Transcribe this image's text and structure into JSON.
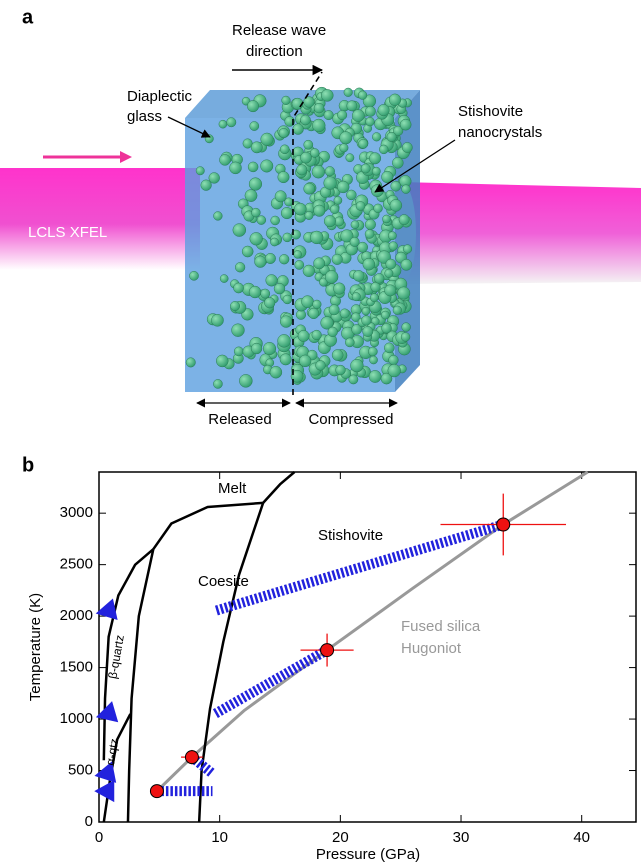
{
  "panel_a": {
    "label": "a",
    "release_wave": [
      "Release wave",
      "direction"
    ],
    "glass": [
      "Diaplectic",
      "glass"
    ],
    "stishovite": [
      "Stishovite",
      "nanocrystals"
    ],
    "beam": "LCLS XFEL",
    "released": "Released",
    "compressed": "Compressed"
  },
  "chart_data": {
    "type": "scatter",
    "panel_label": "b",
    "xlabel": "Pressure (GPa)",
    "ylabel": "Temperature (K)",
    "xlim": [
      0,
      44.5
    ],
    "ylim": [
      0,
      3400
    ],
    "xticks": [
      0,
      10,
      20,
      30,
      40
    ],
    "yticks": [
      0,
      500,
      1000,
      1500,
      2000,
      2500,
      3000
    ],
    "points": {
      "color": "#ee1111",
      "x": [
        4.8,
        7.7,
        18.9,
        33.5
      ],
      "y": [
        300,
        630,
        1670,
        2890
      ],
      "xerr": [
        0.5,
        0.9,
        2.2,
        5.2
      ],
      "yerr": [
        40,
        70,
        160,
        300
      ]
    },
    "releases": {
      "color": "#2222dd",
      "x_end": [
        0.6,
        0.6,
        0.7,
        0.7
      ],
      "y_end": [
        300,
        470,
        1050,
        2050
      ]
    },
    "hugoniot": {
      "color": "#999999",
      "x": [
        4.8,
        7.7,
        12,
        18.9,
        26,
        33.5,
        40.5
      ],
      "y": [
        300,
        630,
        1080,
        1670,
        2270,
        2890,
        3400
      ]
    },
    "boundaries": {
      "color": "#000000",
      "lines": [
        {
          "x": [
            2.4,
            2.5,
            2.7,
            3.3,
            4.5
          ],
          "y": [
            0,
            500,
            1200,
            2000,
            2650
          ]
        },
        {
          "x": [
            8.3,
            8.5,
            9.2,
            10.3,
            11.6,
            13.6
          ],
          "y": [
            0,
            500,
            1100,
            1750,
            2400,
            3100
          ]
        },
        {
          "x": [
            4.5,
            6,
            9,
            13.6
          ],
          "y": [
            2650,
            2900,
            3060,
            3100
          ]
        },
        {
          "x": [
            13.6,
            15,
            16.2
          ],
          "y": [
            3100,
            3280,
            3400
          ]
        },
        {
          "x": [
            4.5,
            3,
            1.6,
            0.8,
            0.5,
            0.4
          ],
          "y": [
            2650,
            2500,
            2200,
            1800,
            1200,
            600
          ]
        },
        {
          "x": [
            0.4,
            0.9,
            1.5,
            2.6
          ],
          "y": [
            0,
            400,
            800,
            1050
          ]
        }
      ]
    },
    "annotations": [
      "Melt",
      "Coesite",
      "Stishovite",
      "Fused silica",
      "Hugoniot",
      "β-quartz",
      "α-qtz"
    ]
  }
}
